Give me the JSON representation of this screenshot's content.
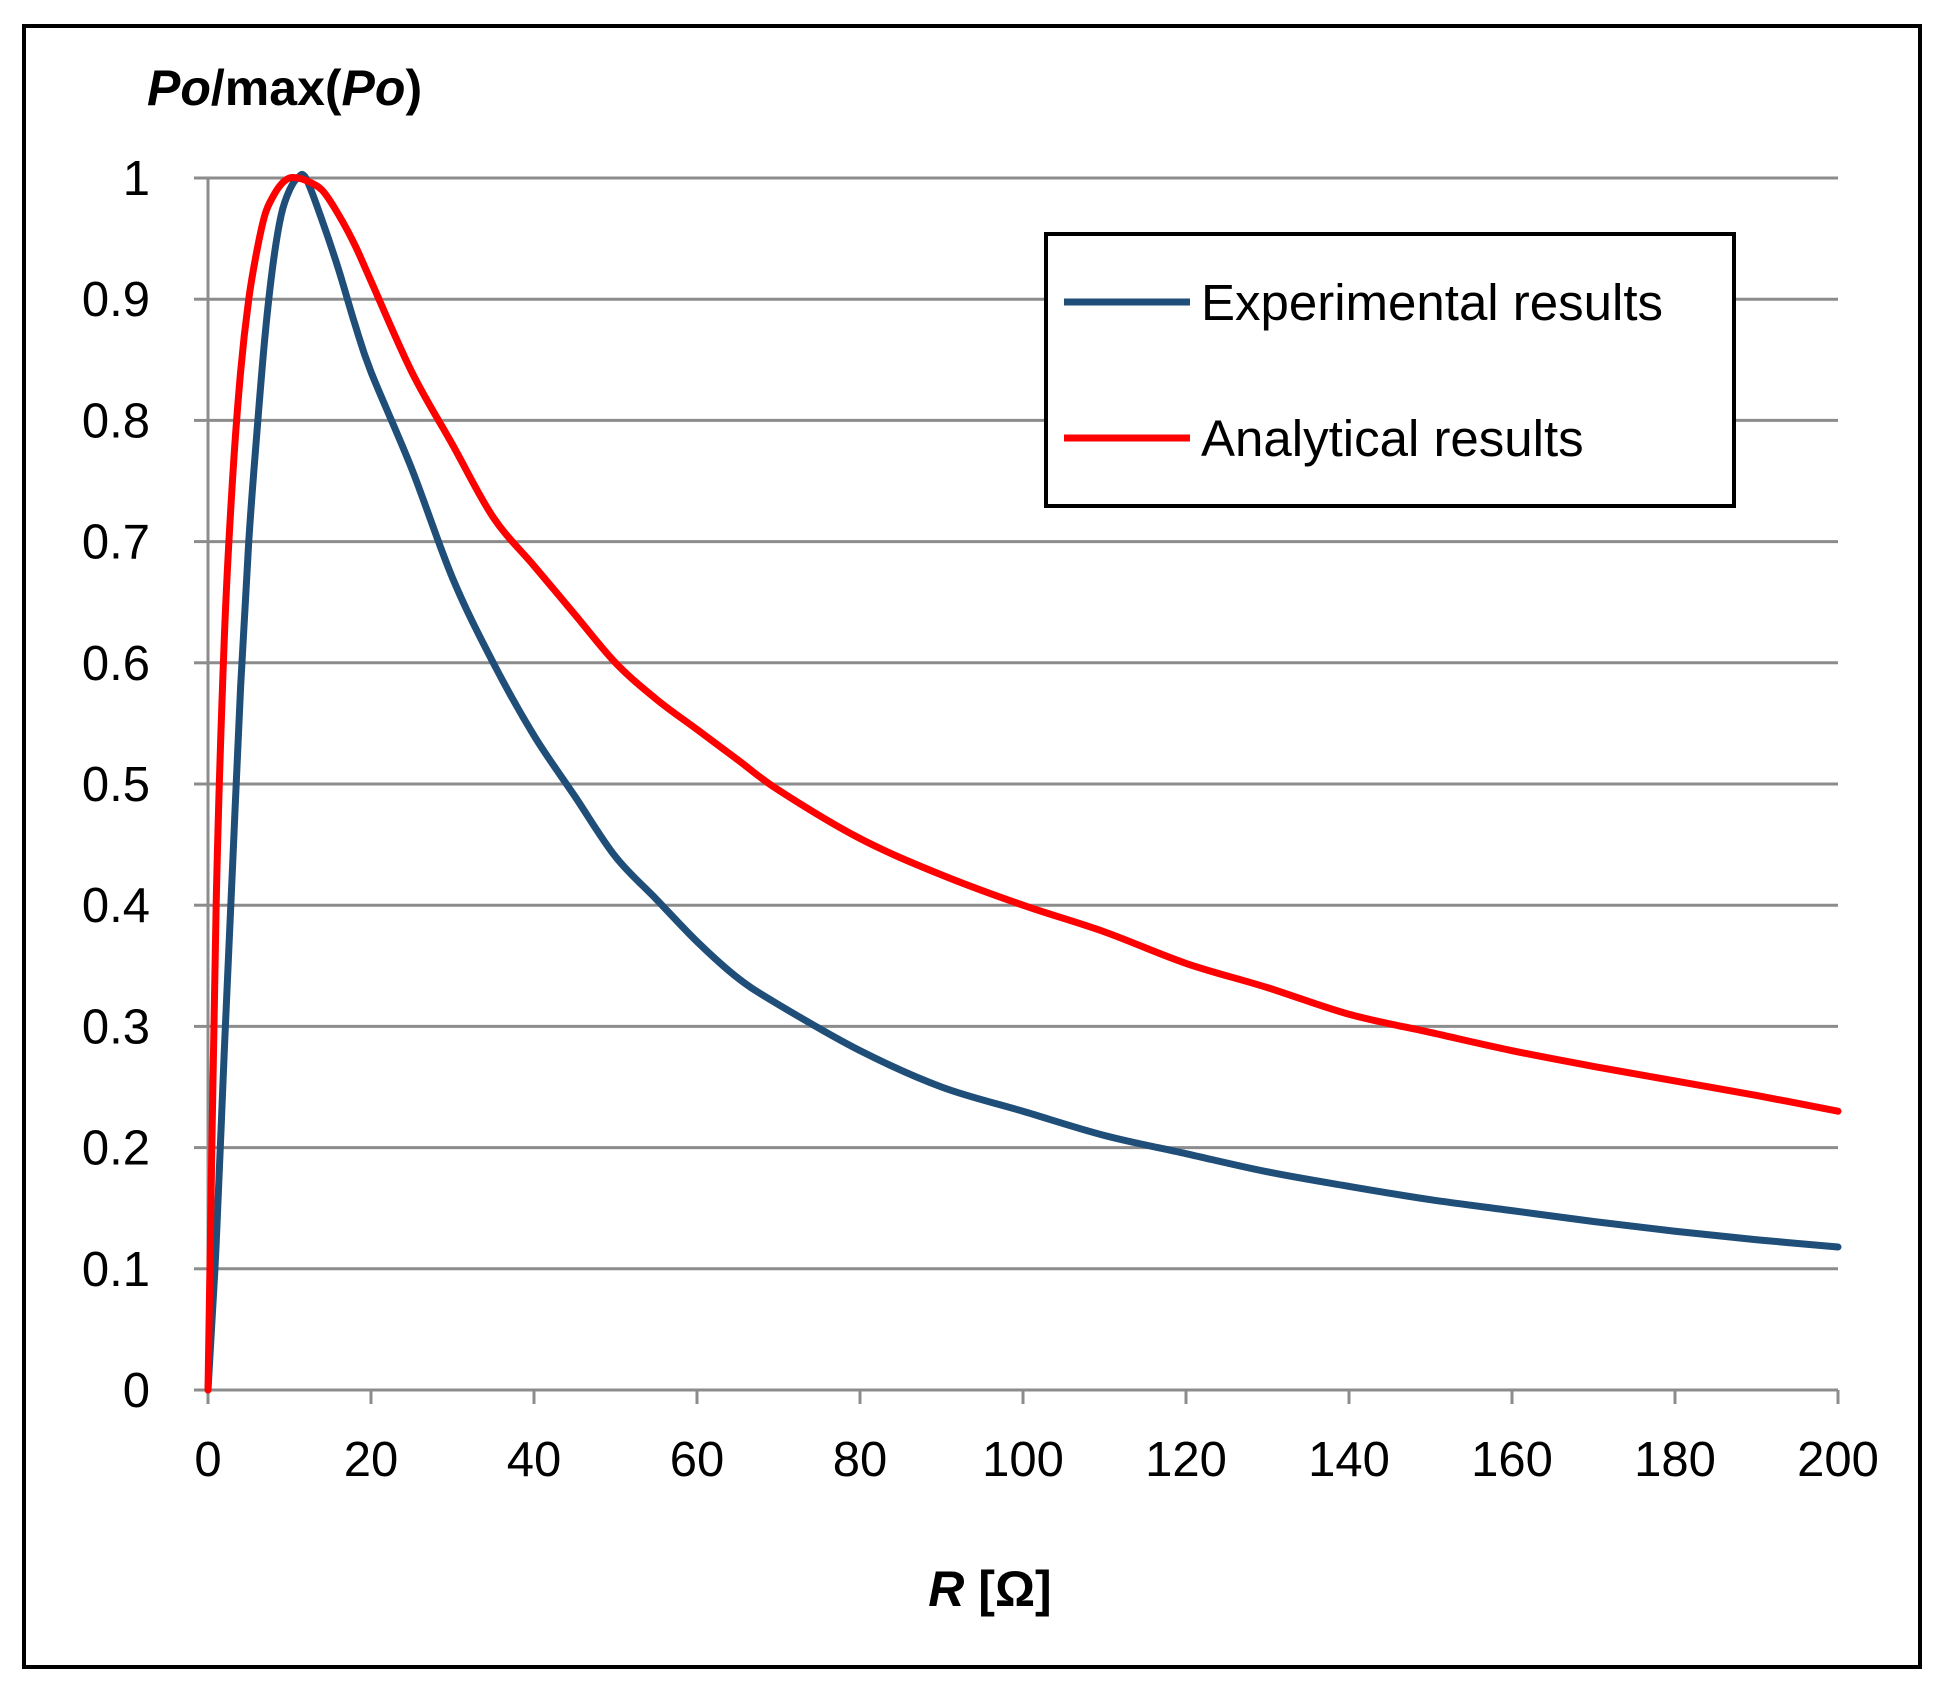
{
  "colors": {
    "experimental": "#1f4e79",
    "analytical": "#ff0000",
    "grid": "#8c8c8c",
    "frame": "#000000",
    "background": "#ffffff"
  },
  "chart_data": {
    "type": "line",
    "title": "",
    "ylabel": {
      "italic1": "Po",
      "plain": "/max(",
      "italic2": "Po",
      "close": ")"
    },
    "xlabel": {
      "italic": "R",
      "plain": " [Ω]"
    },
    "xlim": [
      0,
      200
    ],
    "ylim": [
      0,
      1
    ],
    "grid": true,
    "legend_position": "top-right",
    "x_ticks": [
      "0",
      "20",
      "40",
      "60",
      "80",
      "100",
      "120",
      "140",
      "160",
      "180",
      "200"
    ],
    "y_ticks": [
      "0",
      "0.1",
      "0.2",
      "0.3",
      "0.4",
      "0.5",
      "0.6",
      "0.7",
      "0.8",
      "0.9",
      "1"
    ],
    "series": [
      {
        "name": "Experimental results",
        "x": [
          0,
          1,
          2,
          3,
          4,
          5,
          6,
          7,
          8,
          9,
          10,
          11,
          12,
          14,
          16,
          18,
          20,
          25,
          30,
          35,
          40,
          45,
          50,
          55,
          60,
          65,
          70,
          80,
          90,
          100,
          110,
          120,
          130,
          140,
          150,
          160,
          170,
          180,
          190,
          200
        ],
        "y": [
          0,
          0.12,
          0.28,
          0.43,
          0.58,
          0.7,
          0.79,
          0.87,
          0.93,
          0.97,
          0.99,
          1.0,
          1.0,
          0.965,
          0.925,
          0.88,
          0.84,
          0.76,
          0.67,
          0.6,
          0.54,
          0.49,
          0.44,
          0.405,
          0.37,
          0.34,
          0.318,
          0.28,
          0.25,
          0.23,
          0.21,
          0.195,
          0.18,
          0.168,
          0.157,
          0.148,
          0.139,
          0.131,
          0.124,
          0.118
        ]
      },
      {
        "name": "Analytical results",
        "x": [
          0,
          1,
          2,
          3,
          4,
          5,
          6,
          7,
          8,
          9,
          10,
          11,
          12,
          14,
          16,
          18,
          20,
          25,
          30,
          35,
          40,
          45,
          50,
          55,
          60,
          65,
          70,
          80,
          90,
          100,
          110,
          120,
          130,
          140,
          150,
          160,
          170,
          180,
          190,
          200
        ],
        "y": [
          0,
          0.4,
          0.62,
          0.75,
          0.84,
          0.9,
          0.94,
          0.97,
          0.985,
          0.995,
          1.0,
          1.0,
          0.998,
          0.99,
          0.97,
          0.945,
          0.915,
          0.84,
          0.78,
          0.72,
          0.68,
          0.64,
          0.6,
          0.57,
          0.545,
          0.52,
          0.495,
          0.455,
          0.425,
          0.4,
          0.378,
          0.352,
          0.332,
          0.31,
          0.295,
          0.28,
          0.267,
          0.255,
          0.243,
          0.23
        ]
      }
    ]
  }
}
